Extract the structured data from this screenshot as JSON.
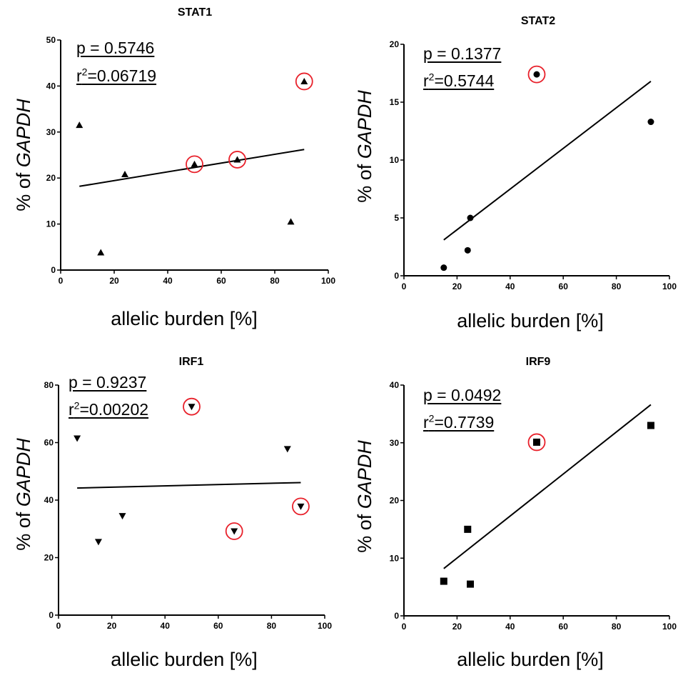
{
  "chart_data": [
    {
      "type": "scatter",
      "title": "STAT1",
      "xlabel": "allelic burden [%]",
      "ylabel_prefix": "% of ",
      "ylabel_italic": "GAPDH",
      "xlim": [
        0,
        100
      ],
      "ylim": [
        0,
        50
      ],
      "xticks": [
        0,
        20,
        40,
        60,
        80,
        100
      ],
      "yticks": [
        0,
        10,
        20,
        30,
        40,
        50
      ],
      "marker": "triangle-up",
      "points": [
        {
          "x": 7,
          "y": 31.5,
          "highlighted": false
        },
        {
          "x": 15,
          "y": 3.8,
          "highlighted": false
        },
        {
          "x": 24,
          "y": 20.8,
          "highlighted": false
        },
        {
          "x": 50,
          "y": 23.0,
          "highlighted": true
        },
        {
          "x": 66,
          "y": 24.0,
          "highlighted": true
        },
        {
          "x": 86,
          "y": 10.5,
          "highlighted": false
        },
        {
          "x": 91,
          "y": 41.0,
          "highlighted": true
        }
      ],
      "fit_line": {
        "x": [
          7,
          91
        ],
        "y": [
          18.2,
          26.2
        ]
      },
      "p_label": "p = 0.5746",
      "r2_prefix": "r",
      "r2_sup": "2",
      "r2_value": "=0.06719"
    },
    {
      "type": "scatter",
      "title": "STAT2",
      "xlabel": "allelic burden [%]",
      "ylabel_prefix": "% of ",
      "ylabel_italic": "GAPDH",
      "xlim": [
        0,
        100
      ],
      "ylim": [
        0,
        20
      ],
      "xticks": [
        0,
        20,
        40,
        60,
        80,
        100
      ],
      "yticks": [
        0,
        5,
        10,
        15,
        20
      ],
      "marker": "circle",
      "points": [
        {
          "x": 15,
          "y": 0.7,
          "highlighted": false
        },
        {
          "x": 24,
          "y": 2.2,
          "highlighted": false
        },
        {
          "x": 25,
          "y": 5.0,
          "highlighted": false
        },
        {
          "x": 50,
          "y": 17.4,
          "highlighted": true
        },
        {
          "x": 93,
          "y": 13.3,
          "highlighted": false
        }
      ],
      "fit_line": {
        "x": [
          15,
          93
        ],
        "y": [
          3.1,
          16.8
        ]
      },
      "p_label": "p = 0.1377",
      "r2_prefix": "r",
      "r2_sup": "2",
      "r2_value": "=0.5744"
    },
    {
      "type": "scatter",
      "title": "IRF1",
      "xlabel": "allelic burden [%]",
      "ylabel_prefix": "% of ",
      "ylabel_italic": "GAPDH",
      "xlim": [
        0,
        100
      ],
      "ylim": [
        0,
        80
      ],
      "xticks": [
        0,
        20,
        40,
        60,
        80,
        100
      ],
      "yticks": [
        0,
        20,
        40,
        60,
        80
      ],
      "marker": "triangle-down",
      "points": [
        {
          "x": 7,
          "y": 61.5,
          "highlighted": false
        },
        {
          "x": 15,
          "y": 25.5,
          "highlighted": false
        },
        {
          "x": 24,
          "y": 34.5,
          "highlighted": false
        },
        {
          "x": 50,
          "y": 72.5,
          "highlighted": true
        },
        {
          "x": 66,
          "y": 29.2,
          "highlighted": true
        },
        {
          "x": 86,
          "y": 57.8,
          "highlighted": false
        },
        {
          "x": 91,
          "y": 37.8,
          "highlighted": true
        }
      ],
      "fit_line": {
        "x": [
          7,
          91
        ],
        "y": [
          44.2,
          46.1
        ]
      },
      "p_label": "p = 0.9237",
      "r2_prefix": "r",
      "r2_sup": "2",
      "r2_value": "=0.00202"
    },
    {
      "type": "scatter",
      "title": "IRF9",
      "xlabel": "allelic burden [%]",
      "ylabel_prefix": "% of ",
      "ylabel_italic": "GAPDH",
      "xlim": [
        0,
        100
      ],
      "ylim": [
        0,
        40
      ],
      "xticks": [
        0,
        20,
        40,
        60,
        80,
        100
      ],
      "yticks": [
        0,
        10,
        20,
        30,
        40
      ],
      "marker": "square",
      "points": [
        {
          "x": 15,
          "y": 6.0,
          "highlighted": false
        },
        {
          "x": 24,
          "y": 15.0,
          "highlighted": false
        },
        {
          "x": 25,
          "y": 5.5,
          "highlighted": false
        },
        {
          "x": 50,
          "y": 30.1,
          "highlighted": true
        },
        {
          "x": 93,
          "y": 33.0,
          "highlighted": false
        }
      ],
      "fit_line": {
        "x": [
          15,
          93
        ],
        "y": [
          8.2,
          36.6
        ]
      },
      "p_label": "p = 0.0492",
      "r2_prefix": "r",
      "r2_sup": "2",
      "r2_value": "=0.7739"
    }
  ],
  "colors": {
    "axis": "#000000",
    "marker": "#000000",
    "highlight_ring": "#e8212b",
    "fit_line": "#000000"
  }
}
